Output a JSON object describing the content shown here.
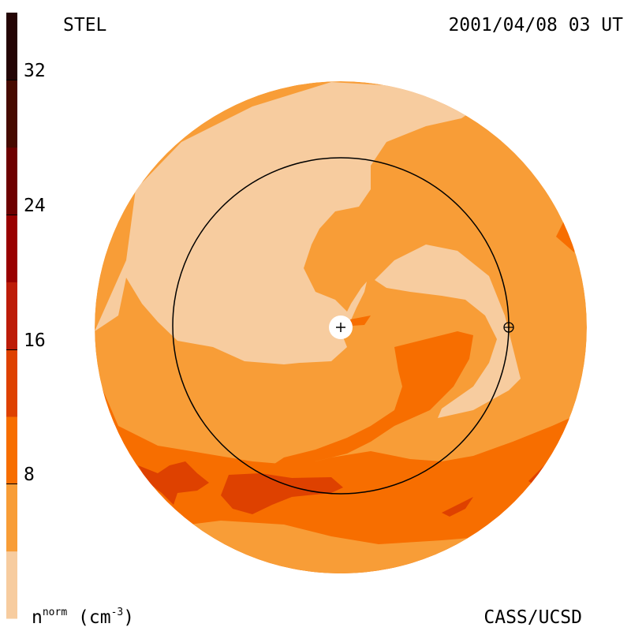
{
  "header": {
    "source": "STEL",
    "datetime": "2001/04/08 03 UT"
  },
  "footer": {
    "credit": "CASS/UCSD",
    "unit_base": "n",
    "unit_sup": "norm",
    "unit_paren_open": " (cm",
    "unit_exp": "-3",
    "unit_paren_close": ")"
  },
  "colorbar": {
    "min": 0,
    "max": 36,
    "step": 4,
    "tick_labels": [
      "8",
      "16",
      "24",
      "32"
    ],
    "colors": [
      "#f7cc9f",
      "#f89d37",
      "#f76e00",
      "#de4100",
      "#bd1c08",
      "#990000",
      "#6e0000",
      "#460a00",
      "#240505"
    ]
  },
  "map": {
    "palette": {
      "light": "#f7cc9f",
      "mid": "#f89d37",
      "dark": "#f76e00",
      "darker": "#de4100"
    },
    "markers": [
      "sun-marker",
      "earth-marker"
    ]
  }
}
